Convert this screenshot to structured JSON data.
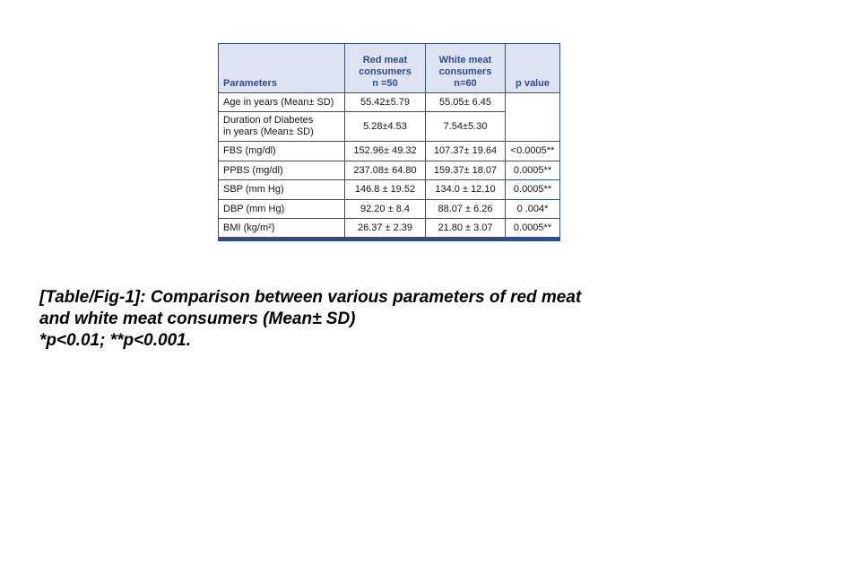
{
  "colors": {
    "header_bg": "#dde3f0",
    "header_text": "#2e4c8f",
    "navy_border": "#33508f",
    "body_border": "#4b4b4b",
    "bottom_bar": "#2e4c8f",
    "page_bg": "#ffffff",
    "caption_text": "#000000"
  },
  "table": {
    "headers": [
      "Parameters",
      "Red meat\nconsumers\nn =50",
      "White meat\nconsumers\nn=60",
      "p value"
    ],
    "rows": [
      {
        "param": "Age in years (Mean± SD)",
        "red": "55.42±5.79",
        "white": "55.05± 6.45",
        "p": ""
      },
      {
        "param": "Duration of Diabetes\nin years (Mean± SD)",
        "red": "5.28±4.53",
        "white": "7.54±5.30"
      },
      {
        "param": "FBS (mg/dl)",
        "red": "152.96± 49.32",
        "white": "107.37± 19.64",
        "p": "<0.0005**"
      },
      {
        "param": "PPBS (mg/dl)",
        "red": "237.08± 64.80",
        "white": "159.37± 18.07",
        "p": "0.0005**"
      },
      {
        "param": "SBP (mm Hg)",
        "red": "146.8 ± 19.52",
        "white": "134.0 ± 12.10",
        "p": "0.0005**"
      },
      {
        "param": "DBP (mm Hg)",
        "red": "92.20 ± 8.4",
        "white": "88.07 ± 6.26",
        "p": "0 .004*"
      },
      {
        "param": "BMI (kg/m²)",
        "red": "26.37 ± 2.39",
        "white": "21.80 ± 3.07",
        "p": "0.0005**"
      }
    ]
  },
  "caption": {
    "lines": [
      "[Table/Fig-1]: Comparison between various parameters of red meat",
      "and white meat consumers (Mean± SD)",
      "*p<0.01; **p<0.001."
    ]
  }
}
